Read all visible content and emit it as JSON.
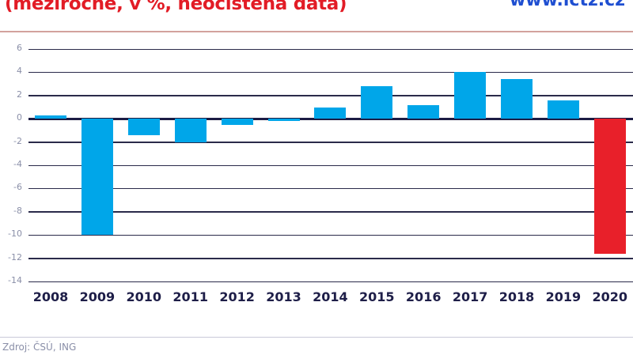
{
  "header": {
    "title": "(meziročně, v %, neočištěná data)",
    "site": "www.ictz.cz"
  },
  "footer": {
    "source": "Zdroj: ČSÚ, ING"
  },
  "colors": {
    "positive_bar": "#00a6e9",
    "highlight_bar": "#e8202a",
    "title": "#e21c26",
    "axis_text": "#8a8fa8",
    "gridline": "#2a2a4a"
  },
  "chart_data": {
    "type": "bar",
    "title": "(meziročně, v %, neočištěná data)",
    "xlabel": "",
    "ylabel": "",
    "categories": [
      "2008",
      "2009",
      "2010",
      "2011",
      "2012",
      "2013",
      "2014",
      "2015",
      "2016",
      "2017",
      "2018",
      "2019",
      "2020"
    ],
    "values": [
      0.3,
      -10.0,
      -1.4,
      -2.0,
      -0.5,
      -0.2,
      1.0,
      2.8,
      1.2,
      4.0,
      3.4,
      1.6,
      -11.6
    ],
    "highlight": [
      "2020"
    ],
    "ylim": [
      -14,
      6
    ],
    "yticks": [
      6,
      4,
      2,
      0,
      -2,
      -4,
      -6,
      -8,
      -10,
      -12,
      -14
    ],
    "grid": true,
    "legend": "none"
  }
}
